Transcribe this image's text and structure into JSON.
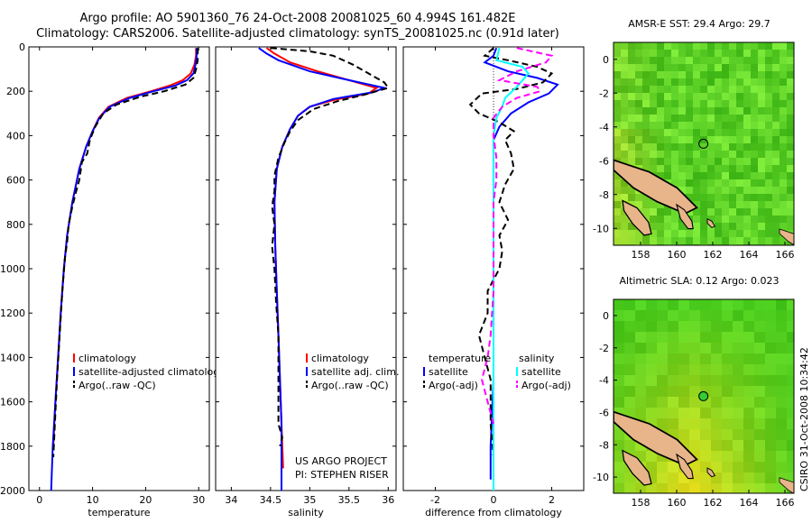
{
  "header": {
    "line1": "Argo profile: AO 5901360_76 24-Oct-2008 20081025_60 4.994S 161.482E",
    "line2": "Climatology: CARS2006. Satellite-adjusted climatology: synTS_20081025.nc (0.91d later)"
  },
  "side_label": "CSIRO 31-Oct-2008 10:34:42",
  "colors": {
    "clim": "#ff0000",
    "sat": "#0000ff",
    "argo": "#000000",
    "sat_sal": "#00ffff",
    "argo_sal": "#ff00ff"
  },
  "chart_data": [
    {
      "type": "line",
      "xlabel": "temperature",
      "xlim": [
        -2,
        32
      ],
      "ylim": [
        2000,
        0
      ],
      "xticks": [
        0,
        10,
        20,
        30
      ],
      "yticks": [
        0,
        200,
        400,
        600,
        800,
        1000,
        1200,
        1400,
        1600,
        1800,
        2000
      ],
      "legend": [
        "climatology",
        "satellite-adjusted climatology",
        "Argo(..raw -QC)"
      ],
      "series": [
        {
          "name": "climatology",
          "style": "clim",
          "points": [
            [
              29.5,
              5
            ],
            [
              29.5,
              40
            ],
            [
              29.2,
              80
            ],
            [
              28.5,
              120
            ],
            [
              27.0,
              150
            ],
            [
              24.5,
              175
            ],
            [
              21.0,
              200
            ],
            [
              16.5,
              230
            ],
            [
              13.0,
              270
            ],
            [
              11.2,
              320
            ],
            [
              10.0,
              380
            ],
            [
              8.8,
              450
            ],
            [
              7.5,
              550
            ],
            [
              6.2,
              700
            ],
            [
              5.2,
              850
            ],
            [
              4.6,
              1000
            ],
            [
              4.0,
              1200
            ],
            [
              3.5,
              1400
            ],
            [
              3.0,
              1600
            ],
            [
              2.6,
              1800
            ]
          ]
        },
        {
          "name": "satellite-adjusted climatology",
          "style": "sat",
          "points": [
            [
              29.6,
              5
            ],
            [
              29.6,
              40
            ],
            [
              29.4,
              80
            ],
            [
              29.0,
              120
            ],
            [
              27.8,
              150
            ],
            [
              25.5,
              175
            ],
            [
              21.5,
              200
            ],
            [
              17.0,
              230
            ],
            [
              13.2,
              270
            ],
            [
              11.3,
              320
            ],
            [
              10.0,
              380
            ],
            [
              8.8,
              450
            ],
            [
              7.5,
              550
            ],
            [
              6.2,
              700
            ],
            [
              5.2,
              850
            ],
            [
              4.6,
              1000
            ],
            [
              4.0,
              1200
            ],
            [
              3.5,
              1400
            ],
            [
              3.0,
              1600
            ],
            [
              2.5,
              1800
            ],
            [
              2.2,
              2000
            ]
          ]
        },
        {
          "name": "Argo(..raw -QC)",
          "style": "argo",
          "points": [
            [
              29.8,
              5
            ],
            [
              29.8,
              60
            ],
            [
              29.5,
              100
            ],
            [
              29.0,
              140
            ],
            [
              27.5,
              170
            ],
            [
              23.5,
              200
            ],
            [
              19.0,
              225
            ],
            [
              14.5,
              260
            ],
            [
              12.0,
              300
            ],
            [
              10.5,
              360
            ],
            [
              9.5,
              420
            ],
            [
              9.0,
              480
            ],
            [
              8.0,
              520
            ],
            [
              7.5,
              600
            ],
            [
              6.8,
              660
            ],
            [
              6.2,
              720
            ],
            [
              5.5,
              800
            ],
            [
              5.2,
              880
            ],
            [
              4.8,
              950
            ],
            [
              4.3,
              1100
            ],
            [
              3.8,
              1300
            ],
            [
              3.3,
              1500
            ],
            [
              2.9,
              1700
            ],
            [
              2.6,
              1850
            ]
          ]
        }
      ]
    },
    {
      "type": "line",
      "xlabel": "salinity",
      "xlim": [
        33.8,
        36.1
      ],
      "ylim": [
        2000,
        0
      ],
      "xticks": [
        34,
        34.5,
        35,
        35.5,
        36
      ],
      "yticks": [
        0,
        200,
        400,
        600,
        800,
        1000,
        1200,
        1400,
        1600,
        1800,
        2000
      ],
      "legend": [
        "climatology",
        "satellite adj. clim.",
        "Argo(..raw -QC)"
      ],
      "annotation": [
        "US ARGO PROJECT",
        "PI: STEPHEN RISER"
      ],
      "series": [
        {
          "name": "climatology",
          "style": "clim",
          "points": [
            [
              34.45,
              5
            ],
            [
              34.55,
              30
            ],
            [
              34.75,
              70
            ],
            [
              35.1,
              110
            ],
            [
              35.5,
              150
            ],
            [
              35.85,
              185
            ],
            [
              35.75,
              210
            ],
            [
              35.3,
              240
            ],
            [
              35.0,
              270
            ],
            [
              34.85,
              310
            ],
            [
              34.75,
              370
            ],
            [
              34.65,
              450
            ],
            [
              34.58,
              550
            ],
            [
              34.55,
              700
            ],
            [
              34.56,
              900
            ],
            [
              34.58,
              1100
            ],
            [
              34.6,
              1300
            ],
            [
              34.62,
              1500
            ],
            [
              34.64,
              1700
            ],
            [
              34.66,
              1900
            ]
          ]
        },
        {
          "name": "satellite adj. clim.",
          "style": "sat",
          "points": [
            [
              34.35,
              5
            ],
            [
              34.45,
              30
            ],
            [
              34.6,
              60
            ],
            [
              35.0,
              110
            ],
            [
              35.5,
              150
            ],
            [
              35.95,
              185
            ],
            [
              35.8,
              205
            ],
            [
              35.3,
              235
            ],
            [
              35.0,
              270
            ],
            [
              34.85,
              310
            ],
            [
              34.75,
              370
            ],
            [
              34.65,
              450
            ],
            [
              34.58,
              550
            ],
            [
              34.55,
              700
            ],
            [
              34.56,
              900
            ],
            [
              34.58,
              1100
            ],
            [
              34.6,
              1300
            ],
            [
              34.62,
              1500
            ],
            [
              34.64,
              1700
            ],
            [
              34.64,
              1900
            ],
            [
              34.64,
              2000
            ]
          ]
        },
        {
          "name": "Argo(..raw -QC)",
          "style": "argo",
          "points": [
            [
              34.5,
              5
            ],
            [
              35.0,
              20
            ],
            [
              35.3,
              40
            ],
            [
              35.55,
              80
            ],
            [
              35.75,
              120
            ],
            [
              35.95,
              160
            ],
            [
              36.0,
              185
            ],
            [
              35.7,
              215
            ],
            [
              35.35,
              245
            ],
            [
              35.05,
              280
            ],
            [
              34.85,
              330
            ],
            [
              34.75,
              380
            ],
            [
              34.68,
              430
            ],
            [
              34.6,
              500
            ],
            [
              34.55,
              580
            ],
            [
              34.55,
              650
            ],
            [
              34.52,
              720
            ],
            [
              34.55,
              800
            ],
            [
              34.52,
              900
            ],
            [
              34.55,
              1000
            ],
            [
              34.57,
              1150
            ],
            [
              34.6,
              1300
            ],
            [
              34.6,
              1450
            ],
            [
              34.6,
              1600
            ],
            [
              34.6,
              1700
            ],
            [
              34.65,
              1760
            ],
            [
              34.62,
              1800
            ]
          ]
        }
      ]
    },
    {
      "type": "line",
      "xlabel": "difference from climatology",
      "xlim": [
        -3.1,
        3.1
      ],
      "ylim": [
        2000,
        0
      ],
      "xticks": [
        -2,
        0,
        2
      ],
      "yticks": [
        0,
        200,
        400,
        600,
        800,
        1000,
        1200,
        1400,
        1600,
        1800,
        2000
      ],
      "legend_left": [
        "temperature",
        "satellite",
        "Argo(-adj)"
      ],
      "legend_right": [
        "salinity",
        "satellite",
        "Argo(-adj)"
      ],
      "series": [
        {
          "name": "satellite",
          "group": "temperature",
          "style": "sat",
          "points": [
            [
              0.1,
              5
            ],
            [
              0.0,
              40
            ],
            [
              -0.3,
              70
            ],
            [
              0.5,
              110
            ],
            [
              1.5,
              140
            ],
            [
              2.2,
              170
            ],
            [
              1.9,
              210
            ],
            [
              1.2,
              250
            ],
            [
              0.6,
              300
            ],
            [
              0.2,
              360
            ],
            [
              0.0,
              420
            ],
            [
              0.0,
              600
            ],
            [
              0.0,
              1000
            ],
            [
              0.0,
              1500
            ],
            [
              -0.1,
              1800
            ],
            [
              -0.1,
              1950
            ]
          ]
        },
        {
          "name": "Argo(-adj)",
          "group": "temperature",
          "style": "argo",
          "points": [
            [
              0.0,
              5
            ],
            [
              -0.3,
              40
            ],
            [
              0.5,
              60
            ],
            [
              1.5,
              90
            ],
            [
              2.0,
              120
            ],
            [
              1.7,
              160
            ],
            [
              0.8,
              190
            ],
            [
              -0.4,
              210
            ],
            [
              -0.8,
              260
            ],
            [
              -0.5,
              300
            ],
            [
              0.2,
              340
            ],
            [
              0.7,
              380
            ],
            [
              0.4,
              420
            ],
            [
              0.6,
              480
            ],
            [
              0.7,
              550
            ],
            [
              0.4,
              620
            ],
            [
              0.2,
              700
            ],
            [
              0.5,
              780
            ],
            [
              0.2,
              850
            ],
            [
              0.3,
              920
            ],
            [
              0.2,
              1000
            ],
            [
              -0.2,
              1100
            ],
            [
              -0.2,
              1200
            ],
            [
              -0.5,
              1300
            ],
            [
              -0.3,
              1400
            ],
            [
              -0.1,
              1500
            ],
            [
              -0.1,
              1600
            ],
            [
              -0.1,
              1700
            ],
            [
              0.0,
              1850
            ]
          ]
        },
        {
          "name": "satellite",
          "group": "salinity",
          "style": "sat_sal",
          "points": [
            [
              0.2,
              5
            ],
            [
              0.1,
              60
            ],
            [
              1.0,
              90
            ],
            [
              1.2,
              120
            ],
            [
              0.8,
              180
            ],
            [
              0.4,
              230
            ],
            [
              0.3,
              270
            ],
            [
              0.1,
              320
            ],
            [
              0.0,
              400
            ],
            [
              0.0,
              700
            ],
            [
              0.0,
              1000
            ],
            [
              0.0,
              1500
            ],
            [
              0.0,
              1900
            ],
            [
              0.0,
              2000
            ]
          ]
        },
        {
          "name": "Argo(-adj)",
          "group": "salinity",
          "style": "argo_sal",
          "points": [
            [
              0.8,
              5
            ],
            [
              2.0,
              40
            ],
            [
              1.8,
              70
            ],
            [
              0.8,
              110
            ],
            [
              0.2,
              150
            ],
            [
              1.5,
              180
            ],
            [
              1.6,
              200
            ],
            [
              0.8,
              230
            ],
            [
              0.3,
              270
            ],
            [
              0.0,
              320
            ],
            [
              0.0,
              400
            ],
            [
              0.1,
              500
            ],
            [
              0.1,
              600
            ],
            [
              0.0,
              700
            ],
            [
              0.0,
              900
            ],
            [
              0.0,
              1100
            ],
            [
              -0.1,
              1300
            ],
            [
              -0.2,
              1400
            ],
            [
              -0.4,
              1500
            ],
            [
              -0.2,
              1600
            ],
            [
              0.0,
              1700
            ]
          ]
        }
      ]
    },
    {
      "type": "heatmap",
      "title": "AMSR-E SST: 29.4 Argo: 29.7",
      "xlim": [
        156.5,
        166.5
      ],
      "ylim": [
        -11,
        1
      ],
      "xticks": [
        158,
        160,
        162,
        164,
        166
      ],
      "yticks": [
        0,
        -2,
        -4,
        -6,
        -8,
        -10
      ],
      "marker": {
        "lon": 161.482,
        "lat": -4.994,
        "fill": "none"
      }
    },
    {
      "type": "heatmap",
      "title": "Altimetric SLA: 0.12 Argo: 0.023",
      "xlim": [
        156.5,
        166.5
      ],
      "ylim": [
        -11,
        1
      ],
      "xticks": [
        158,
        160,
        162,
        164,
        166
      ],
      "yticks": [
        0,
        -2,
        -4,
        -6,
        -8,
        -10
      ],
      "marker": {
        "lon": 161.482,
        "lat": -4.994,
        "fill": "#33cc33"
      }
    }
  ]
}
